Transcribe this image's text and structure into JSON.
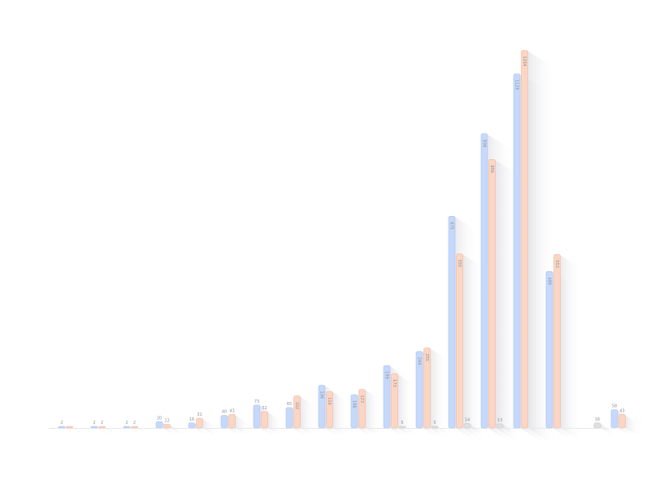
{
  "chart_data": {
    "type": "bar",
    "title": "",
    "xlabel": "",
    "ylabel": "",
    "ylim": [
      0,
      1200
    ],
    "grid": false,
    "legend": "none",
    "categories": [
      "",
      "",
      "",
      "",
      "",
      "",
      "",
      "",
      "",
      "",
      "",
      "",
      "",
      "",
      "",
      "",
      "",
      ""
    ],
    "series": [
      {
        "color": "#c6d9fb",
        "stroke": "#a9c3f0",
        "values": [
          2,
          2,
          2,
          20,
          16,
          40,
          73,
          65,
          136,
          106,
          199,
          244,
          675,
          938,
          1129,
          499,
          0,
          58
        ],
        "labels": [
          "2",
          "2",
          "2",
          "20",
          "16",
          "40",
          "73",
          "65",
          "136",
          "106",
          "199",
          "244",
          "675",
          "938",
          "1129",
          "499",
          "",
          "58"
        ]
      },
      {
        "color": "#fbd6c4",
        "stroke": "#f0b8a0",
        "values": [
          2,
          2,
          2,
          12,
          31,
          43,
          52,
          102,
          116,
          123,
          173,
          255,
          555,
          856,
          1204,
          553,
          0,
          43
        ],
        "labels": [
          "",
          "2",
          "2",
          "12",
          "31",
          "43",
          "52",
          "102",
          "116",
          "123",
          "173",
          "255",
          "555",
          "856",
          "1204",
          "553",
          "",
          "43"
        ]
      },
      {
        "color": "#e0e0e0",
        "stroke": "#c8c8c8",
        "values": [
          0,
          0,
          0,
          0,
          0,
          0,
          0,
          0,
          0,
          0,
          5,
          5,
          14,
          13,
          0,
          0,
          16,
          0
        ],
        "labels": [
          "",
          "",
          "",
          "",
          "",
          "",
          "",
          "",
          "",
          "",
          "5",
          "5",
          "14",
          "13",
          "",
          "",
          "16",
          ""
        ]
      }
    ]
  }
}
